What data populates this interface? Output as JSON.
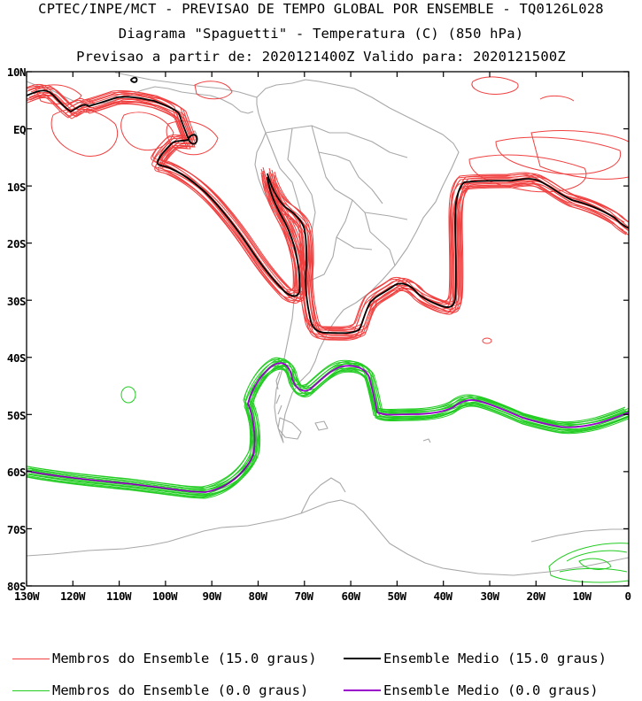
{
  "title": {
    "line1": "CPTEC/INPE/MCT - PREVISAO DE TEMPO GLOBAL POR ENSEMBLE - TQ0126L028",
    "line2": "Diagrama \"Spaguetti\" - Temperatura (C) (850 hPa)",
    "line3": "Previsao a partir de: 2020121400Z  Valido para: 2020121500Z"
  },
  "axes": {
    "y_labels": [
      "10N",
      "EQ",
      "10S",
      "20S",
      "30S",
      "40S",
      "50S",
      "60S",
      "70S",
      "80S"
    ],
    "x_labels": [
      "130W",
      "120W",
      "110W",
      "100W",
      "90W",
      "80W",
      "70W",
      "60W",
      "50W",
      "40W",
      "30W",
      "20W",
      "10W",
      "0"
    ]
  },
  "legend": [
    {
      "label": "Membros do Ensemble (15.0 graus)",
      "color": "#f04040"
    },
    {
      "label": "Ensemble Medio (15.0 graus)",
      "color": "#000000"
    },
    {
      "label": "Membros do Ensemble (0.0 graus)",
      "color": "#22cc22"
    },
    {
      "label": "Ensemble Medio (0.0 graus)",
      "color": "#9900cc"
    }
  ],
  "colors": {
    "coast": "#a8a8a8",
    "warm_member": "#f04040",
    "warm_mean": "#000000",
    "cold_member": "#22cc22",
    "cold_mean": "#9900cc"
  }
}
